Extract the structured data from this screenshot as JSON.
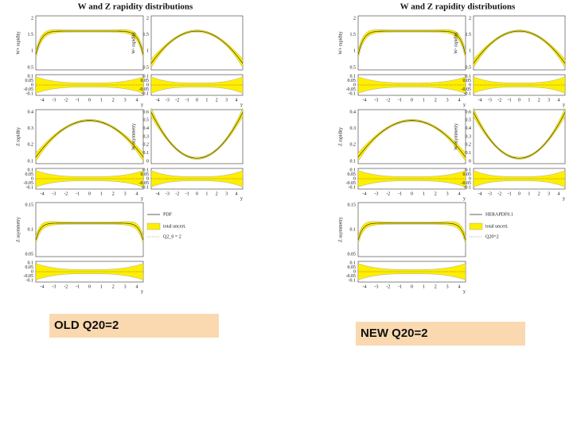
{
  "panels": [
    {
      "title": "W and Z rapidity distributions",
      "caption": "OLD Q20=2",
      "plots": [
        {
          "ylabel": "W+ rapidity",
          "yticks": [
            "2",
            "1.5",
            "1",
            "0.5"
          ],
          "ratio_yticks": [
            "0.1",
            "0.05",
            "0",
            "-0.05",
            "-0.1"
          ],
          "xticks": [
            "-4",
            "-3",
            "-2",
            "-1",
            "0",
            "1",
            "2",
            "3",
            "4"
          ],
          "xlabel": "y"
        },
        {
          "ylabel": "W- rapidity",
          "yticks": [
            "2",
            "1.5",
            "1",
            "0.5"
          ],
          "ratio_yticks": [
            "0.1",
            "0.05",
            "0",
            "-0.05",
            "-0.1"
          ],
          "xticks": [
            "-4",
            "-3",
            "-2",
            "-1",
            "0",
            "1",
            "2",
            "3",
            "4"
          ],
          "xlabel": "y"
        },
        {
          "ylabel": "Z rapidity",
          "yticks": [
            "0.4",
            "0.3",
            "0.2",
            "0.1"
          ],
          "ratio_yticks": [
            "0.1",
            "0.05",
            "0",
            "-0.05",
            "-0.1"
          ],
          "xticks": [
            "-4",
            "-3",
            "-2",
            "-1",
            "0",
            "1",
            "2",
            "3",
            "4"
          ],
          "xlabel": "y"
        },
        {
          "ylabel": "W asymmetry",
          "yticks": [
            "0.6",
            "0.5",
            "0.4",
            "0.3",
            "0.2",
            "0.1",
            "0"
          ],
          "ratio_yticks": [
            "0.1",
            "0.05",
            "0",
            "-0.05",
            "-0.1"
          ],
          "xticks": [
            "-4",
            "-3",
            "-2",
            "-1",
            "0",
            "1",
            "2",
            "3",
            "4"
          ],
          "xlabel": "y"
        },
        {
          "ylabel": "Z asymmetry",
          "yticks": [
            "0.15",
            "0.1",
            "0.05"
          ],
          "ratio_yticks": [
            "0.1",
            "0.05",
            "0",
            "-0.05",
            "-0.1"
          ],
          "xticks": [
            "-4",
            "-3",
            "-2",
            "-1",
            "0",
            "1",
            "2",
            "3",
            "4"
          ],
          "xlabel": "y"
        }
      ],
      "legend": [
        "PDF",
        "total uncert.",
        "Q2_0 = 2"
      ]
    },
    {
      "title": "W and Z rapidity distributions",
      "caption": "NEW Q20=2",
      "plots": [
        {
          "ylabel": "W+ rapidity",
          "yticks": [
            "2",
            "1.5",
            "1",
            "0.5"
          ],
          "ratio_yticks": [
            "0.1",
            "0.05",
            "0",
            "-0.05",
            "-0.1"
          ],
          "xticks": [
            "-4",
            "-3",
            "-2",
            "-1",
            "0",
            "1",
            "2",
            "3",
            "4"
          ],
          "xlabel": "y"
        },
        {
          "ylabel": "W- rapidity",
          "yticks": [
            "2",
            "1.5",
            "1",
            "0.5"
          ],
          "ratio_yticks": [
            "0.1",
            "0.05",
            "0",
            "-0.05",
            "-0.1"
          ],
          "xticks": [
            "-4",
            "-3",
            "-2",
            "-1",
            "0",
            "1",
            "2",
            "3",
            "4"
          ],
          "xlabel": "y"
        },
        {
          "ylabel": "Z rapidity",
          "yticks": [
            "0.4",
            "0.3",
            "0.2",
            "0.1"
          ],
          "ratio_yticks": [
            "0.1",
            "0.05",
            "0",
            "-0.05",
            "-0.1"
          ],
          "xticks": [
            "-4",
            "-3",
            "-2",
            "-1",
            "0",
            "1",
            "2",
            "3",
            "4"
          ],
          "xlabel": "y"
        },
        {
          "ylabel": "W asymmetry",
          "yticks": [
            "0.6",
            "0.5",
            "0.4",
            "0.3",
            "0.2",
            "0.1",
            "0"
          ],
          "ratio_yticks": [
            "0.1",
            "0.05",
            "0",
            "-0.05",
            "-0.1"
          ],
          "xticks": [
            "-4",
            "-3",
            "-2",
            "-1",
            "0",
            "1",
            "2",
            "3",
            "4"
          ],
          "xlabel": "y"
        },
        {
          "ylabel": "Z asymmetry",
          "yticks": [
            "0.15",
            "0.1",
            "0.05"
          ],
          "ratio_yticks": [
            "0.1",
            "0.05",
            "0",
            "-0.05",
            "-0.1"
          ],
          "xticks": [
            "-4",
            "-3",
            "-2",
            "-1",
            "0",
            "1",
            "2",
            "3",
            "4"
          ],
          "xlabel": "y"
        }
      ],
      "legend": [
        "HERAPDF0.1",
        "total uncert.",
        "Q20=2"
      ]
    }
  ]
}
